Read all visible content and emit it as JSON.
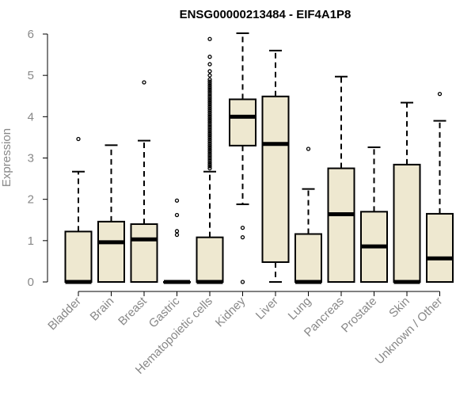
{
  "chart_data": {
    "type": "boxplot",
    "title": "ENSG00000213484 - EIF4A1P8",
    "xlabel": "",
    "ylabel": "Expression",
    "ylim": [
      0,
      6
    ],
    "yticks": [
      "0",
      "1",
      "2",
      "3",
      "4",
      "5",
      "6"
    ],
    "colors": {
      "box_fill": "#EEE8D0",
      "stroke": "#000000",
      "axis_text": "#888888"
    },
    "categories": [
      "Bladder",
      "Brain",
      "Breast",
      "Gastric",
      "Hematopoietic cells",
      "Kidney",
      "Liver",
      "Lung",
      "Pancreas",
      "Prostate",
      "Skin",
      "Unknown / Other"
    ],
    "boxes": [
      {
        "category": "Bladder",
        "whisker_low": 0,
        "q1": 0,
        "median": 0,
        "q3": 1.22,
        "whisker_high": 2.67,
        "outliers": [
          3.46
        ]
      },
      {
        "category": "Brain",
        "whisker_low": 0,
        "q1": 0,
        "median": 0.96,
        "q3": 1.46,
        "whisker_high": 3.31,
        "outliers": []
      },
      {
        "category": "Breast",
        "whisker_low": 0,
        "q1": 0,
        "median": 1.03,
        "q3": 1.4,
        "whisker_high": 3.42,
        "outliers": [
          4.83
        ]
      },
      {
        "category": "Gastric",
        "whisker_low": 0,
        "q1": 0,
        "median": 0,
        "q3": 0,
        "whisker_high": 0,
        "outliers": [
          1.14,
          1.23,
          1.62,
          1.97
        ]
      },
      {
        "category": "Hematopoietic cells",
        "whisker_low": 0,
        "q1": 0,
        "median": 0,
        "q3": 1.08,
        "whisker_high": 2.67,
        "outliers": [
          2.75,
          2.8,
          2.85,
          2.9,
          2.95,
          3.0,
          3.05,
          3.1,
          3.15,
          3.2,
          3.25,
          3.3,
          3.35,
          3.4,
          3.45,
          3.5,
          3.55,
          3.6,
          3.65,
          3.7,
          3.75,
          3.8,
          3.85,
          3.9,
          3.95,
          4.0,
          4.05,
          4.1,
          4.15,
          4.2,
          4.25,
          4.3,
          4.35,
          4.4,
          4.45,
          4.5,
          4.55,
          4.6,
          4.65,
          4.7,
          4.75,
          4.8,
          4.85,
          4.9,
          5.0,
          5.1,
          5.27,
          5.45,
          5.88
        ]
      },
      {
        "category": "Kidney",
        "whisker_low": 1.88,
        "q1": 3.3,
        "median": 4.0,
        "q3": 4.42,
        "whisker_high": 6.02,
        "outliers": [
          0,
          1.08,
          1.31
        ]
      },
      {
        "category": "Liver",
        "whisker_low": 0,
        "q1": 0.48,
        "median": 3.34,
        "q3": 4.49,
        "whisker_high": 5.6,
        "outliers": []
      },
      {
        "category": "Lung",
        "whisker_low": 0,
        "q1": 0,
        "median": 0,
        "q3": 1.16,
        "whisker_high": 2.25,
        "outliers": [
          3.22
        ]
      },
      {
        "category": "Pancreas",
        "whisker_low": 0,
        "q1": 0,
        "median": 1.64,
        "q3": 2.75,
        "whisker_high": 4.97,
        "outliers": []
      },
      {
        "category": "Prostate",
        "whisker_low": 0,
        "q1": 0,
        "median": 0.86,
        "q3": 1.7,
        "whisker_high": 3.26,
        "outliers": []
      },
      {
        "category": "Skin",
        "whisker_low": 0,
        "q1": 0,
        "median": 0,
        "q3": 2.84,
        "whisker_high": 4.34,
        "outliers": []
      },
      {
        "category": "Unknown / Other",
        "whisker_low": 0,
        "q1": 0,
        "median": 0.57,
        "q3": 1.65,
        "whisker_high": 3.9,
        "outliers": [
          4.55
        ]
      }
    ]
  }
}
